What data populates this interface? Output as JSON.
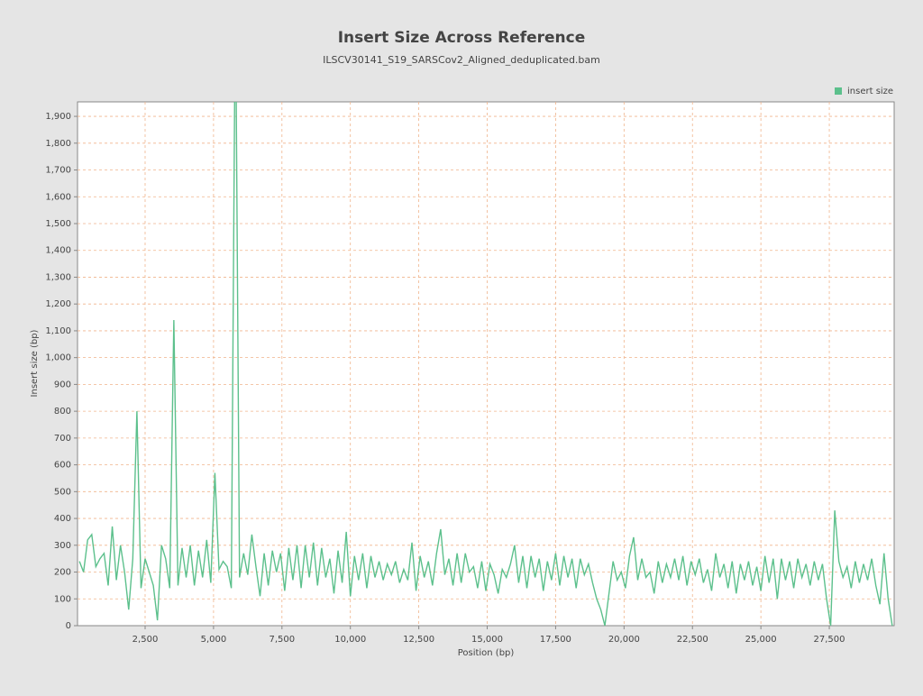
{
  "chart_data": {
    "type": "line",
    "title": "Insert Size Across Reference",
    "subtitle": "ILSCV30141_S19_SARSCov2_Aligned_deduplicated.bam",
    "x_label": "Position (bp)",
    "y_label": "Insert size (bp)",
    "legend_position": "top-right",
    "grid": true,
    "xlim": [
      30,
      29870
    ],
    "ylim": [
      0,
      1954
    ],
    "xticks": [
      {
        "value": 2500,
        "label": "2,500"
      },
      {
        "value": 5000,
        "label": "5,000"
      },
      {
        "value": 7500,
        "label": "7,500"
      },
      {
        "value": 10000,
        "label": "10,000"
      },
      {
        "value": 12500,
        "label": "12,500"
      },
      {
        "value": 15000,
        "label": "15,000"
      },
      {
        "value": 17500,
        "label": "17,500"
      },
      {
        "value": 20000,
        "label": "20,000"
      },
      {
        "value": 22500,
        "label": "22,500"
      },
      {
        "value": 25000,
        "label": "25,000"
      },
      {
        "value": 27500,
        "label": "27,500"
      }
    ],
    "yticks": [
      0,
      100,
      200,
      300,
      400,
      500,
      600,
      700,
      800,
      900,
      {
        "value": 1000,
        "label": "1,000"
      },
      {
        "value": 1100,
        "label": "1,100"
      },
      {
        "value": 1200,
        "label": "1,200"
      },
      {
        "value": 1300,
        "label": "1,300"
      },
      {
        "value": 1400,
        "label": "1,400"
      },
      {
        "value": 1500,
        "label": "1,500"
      },
      {
        "value": 1600,
        "label": "1,600"
      },
      {
        "value": 1700,
        "label": "1,700"
      },
      {
        "value": 1800,
        "label": "1,800"
      },
      {
        "value": 1900,
        "label": "1,900"
      }
    ],
    "x": [
      100,
      250,
      400,
      550,
      700,
      850,
      1000,
      1150,
      1300,
      1450,
      1600,
      1750,
      1900,
      2050,
      2200,
      2350,
      2500,
      2650,
      2800,
      2950,
      3100,
      3250,
      3400,
      3550,
      3700,
      3850,
      4000,
      4150,
      4300,
      4450,
      4600,
      4750,
      4900,
      5050,
      5200,
      5350,
      5500,
      5650,
      5800,
      5950,
      6100,
      6250,
      6400,
      6550,
      6700,
      6850,
      7000,
      7150,
      7300,
      7450,
      7600,
      7750,
      7900,
      8050,
      8200,
      8350,
      8500,
      8650,
      8800,
      8950,
      9100,
      9250,
      9400,
      9550,
      9700,
      9850,
      10000,
      10150,
      10300,
      10450,
      10600,
      10750,
      10900,
      11050,
      11200,
      11350,
      11500,
      11650,
      11800,
      11950,
      12100,
      12250,
      12400,
      12550,
      12700,
      12850,
      13000,
      13150,
      13300,
      13450,
      13600,
      13750,
      13900,
      14050,
      14200,
      14350,
      14500,
      14650,
      14800,
      14950,
      15100,
      15250,
      15400,
      15550,
      15700,
      15850,
      16000,
      16150,
      16300,
      16450,
      16600,
      16750,
      16900,
      17050,
      17200,
      17350,
      17500,
      17650,
      17800,
      17950,
      18100,
      18250,
      18400,
      18550,
      18700,
      18850,
      19000,
      19150,
      19300,
      19450,
      19600,
      19750,
      19900,
      20050,
      20200,
      20350,
      20500,
      20650,
      20800,
      20950,
      21100,
      21250,
      21400,
      21550,
      21700,
      21850,
      22000,
      22150,
      22300,
      22450,
      22600,
      22750,
      22900,
      23050,
      23200,
      23350,
      23500,
      23650,
      23800,
      23950,
      24100,
      24250,
      24400,
      24550,
      24700,
      24850,
      25000,
      25150,
      25300,
      25450,
      25600,
      25750,
      25900,
      26050,
      26200,
      26350,
      26500,
      26650,
      26800,
      26950,
      27100,
      27250,
      27400,
      27550,
      27700,
      27850,
      28000,
      28150,
      28300,
      28450,
      28600,
      28750,
      28900,
      29050,
      29200,
      29350,
      29500,
      29650,
      29800
    ],
    "series": [
      {
        "name": "insert size",
        "color": "#5cc08c",
        "values": [
          240,
          200,
          320,
          340,
          220,
          250,
          270,
          150,
          370,
          170,
          300,
          200,
          60,
          250,
          800,
          140,
          250,
          200,
          150,
          20,
          300,
          250,
          140,
          1140,
          150,
          290,
          180,
          300,
          150,
          280,
          180,
          320,
          160,
          570,
          210,
          240,
          220,
          140,
          2400,
          180,
          270,
          190,
          340,
          220,
          110,
          270,
          150,
          280,
          200,
          270,
          130,
          290,
          170,
          300,
          140,
          300,
          180,
          310,
          150,
          290,
          180,
          250,
          120,
          280,
          160,
          350,
          110,
          260,
          170,
          270,
          140,
          260,
          180,
          240,
          170,
          230,
          190,
          240,
          160,
          210,
          170,
          310,
          130,
          260,
          180,
          240,
          150,
          270,
          360,
          190,
          250,
          150,
          270,
          160,
          270,
          200,
          220,
          140,
          240,
          130,
          230,
          190,
          120,
          210,
          180,
          230,
          300,
          160,
          260,
          140,
          260,
          180,
          250,
          130,
          240,
          170,
          270,
          150,
          260,
          180,
          250,
          140,
          250,
          190,
          230,
          160,
          100,
          60,
          0,
          120,
          240,
          170,
          200,
          140,
          260,
          330,
          170,
          250,
          180,
          200,
          120,
          240,
          160,
          230,
          180,
          250,
          170,
          260,
          150,
          240,
          190,
          250,
          160,
          210,
          130,
          270,
          180,
          230,
          140,
          240,
          120,
          230,
          170,
          240,
          150,
          220,
          130,
          260,
          160,
          250,
          100,
          250,
          170,
          240,
          140,
          250,
          180,
          230,
          150,
          240,
          170,
          230,
          100,
          0,
          430,
          240,
          180,
          220,
          140,
          240,
          160,
          230,
          170,
          250,
          150,
          80,
          270,
          100,
          0
        ]
      }
    ]
  }
}
